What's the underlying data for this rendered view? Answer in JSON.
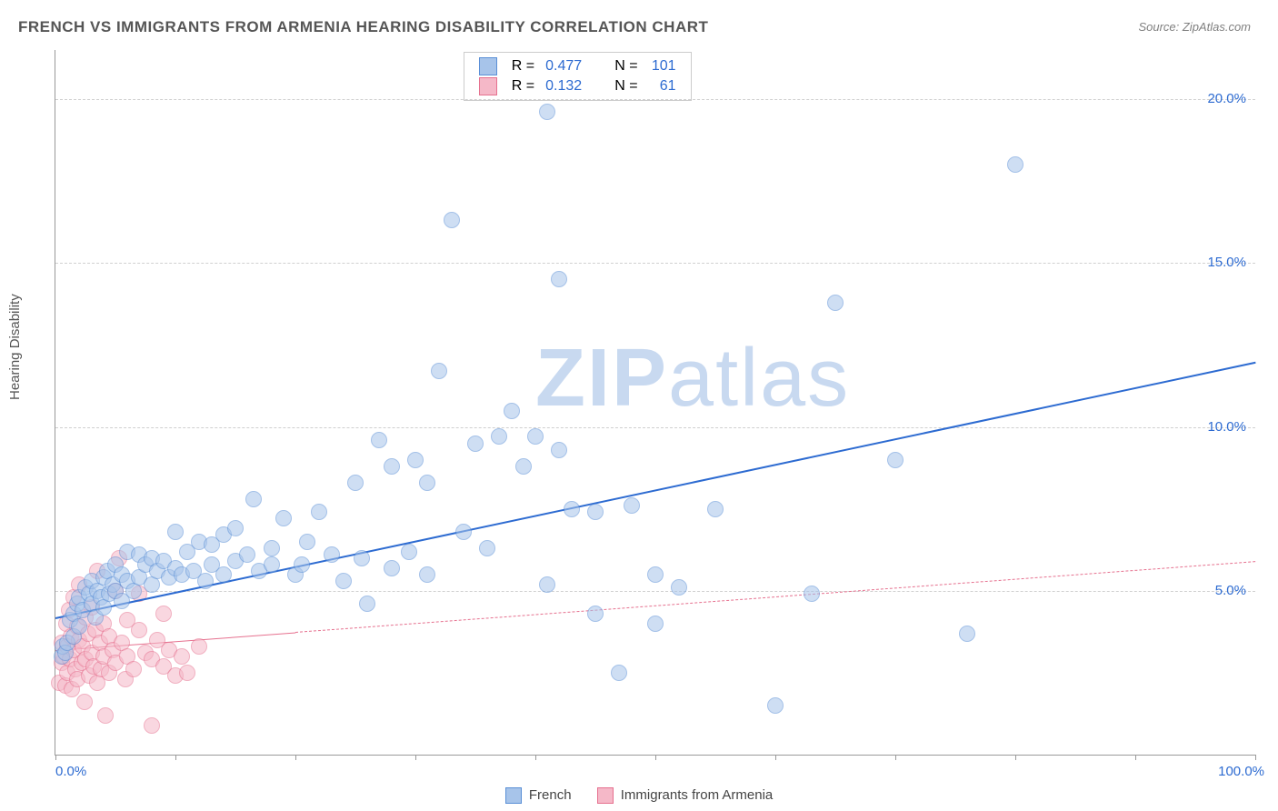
{
  "title": "FRENCH VS IMMIGRANTS FROM ARMENIA HEARING DISABILITY CORRELATION CHART",
  "source_label": "Source: ZipAtlas.com",
  "y_axis_label": "Hearing Disability",
  "watermark": {
    "text_bold": "ZIP",
    "text_light": "atlas",
    "color": "#c8d9f0"
  },
  "chart": {
    "type": "scatter",
    "background_color": "#ffffff",
    "grid_color": "#d0d0d0",
    "axis_color": "#999999",
    "xlim": [
      0,
      100
    ],
    "ylim": [
      0,
      21.5
    ],
    "x_ticks": [
      0,
      10,
      20,
      30,
      40,
      50,
      60,
      70,
      80,
      90,
      100
    ],
    "x_tick_labels": {
      "0": "0.0%",
      "100": "100.0%"
    },
    "x_label_color": "#2d6bd1",
    "y_ticks": [
      5,
      10,
      15,
      20
    ],
    "y_tick_labels": {
      "5": "5.0%",
      "10": "10.0%",
      "15": "15.0%",
      "20": "20.0%"
    },
    "y_label_color": "#2d6bd1",
    "marker_radius": 9,
    "marker_stroke_width": 1.2
  },
  "series": [
    {
      "id": "french",
      "label": "French",
      "color_fill": "#a7c4ea",
      "color_stroke": "#5a8fd6",
      "fill_opacity": 0.55,
      "R": "0.477",
      "N": "101",
      "trend": {
        "x1": 0,
        "y1": 4.2,
        "x2": 100,
        "y2": 12.0,
        "color": "#2d6bd1",
        "width": 2.5,
        "dash": "solid",
        "solid_until_x": 100
      },
      "points": [
        [
          0.5,
          3.0
        ],
        [
          0.6,
          3.3
        ],
        [
          0.8,
          3.1
        ],
        [
          1.0,
          3.4
        ],
        [
          1.2,
          4.1
        ],
        [
          1.5,
          3.6
        ],
        [
          1.5,
          4.3
        ],
        [
          1.8,
          4.6
        ],
        [
          2.0,
          3.9
        ],
        [
          2.0,
          4.8
        ],
        [
          2.3,
          4.4
        ],
        [
          2.5,
          5.1
        ],
        [
          2.8,
          4.9
        ],
        [
          3.0,
          4.6
        ],
        [
          3.0,
          5.3
        ],
        [
          3.3,
          4.2
        ],
        [
          3.5,
          5.0
        ],
        [
          3.8,
          4.8
        ],
        [
          4.0,
          5.4
        ],
        [
          4.0,
          4.5
        ],
        [
          4.3,
          5.6
        ],
        [
          4.5,
          4.9
        ],
        [
          4.8,
          5.2
        ],
        [
          5.0,
          5.0
        ],
        [
          5.0,
          5.8
        ],
        [
          5.5,
          4.7
        ],
        [
          5.5,
          5.5
        ],
        [
          6.0,
          5.3
        ],
        [
          6.0,
          6.2
        ],
        [
          6.5,
          5.0
        ],
        [
          7.0,
          5.4
        ],
        [
          7.0,
          6.1
        ],
        [
          7.5,
          5.8
        ],
        [
          8.0,
          5.2
        ],
        [
          8.0,
          6.0
        ],
        [
          8.5,
          5.6
        ],
        [
          9.0,
          5.9
        ],
        [
          9.5,
          5.4
        ],
        [
          10.0,
          5.7
        ],
        [
          10.0,
          6.8
        ],
        [
          10.5,
          5.5
        ],
        [
          11.0,
          6.2
        ],
        [
          11.5,
          5.6
        ],
        [
          12.0,
          6.5
        ],
        [
          12.5,
          5.3
        ],
        [
          13.0,
          6.4
        ],
        [
          13.0,
          5.8
        ],
        [
          14.0,
          6.7
        ],
        [
          14.0,
          5.5
        ],
        [
          15.0,
          5.9
        ],
        [
          15.0,
          6.9
        ],
        [
          16.0,
          6.1
        ],
        [
          16.5,
          7.8
        ],
        [
          17.0,
          5.6
        ],
        [
          18.0,
          6.3
        ],
        [
          18.0,
          5.8
        ],
        [
          19.0,
          7.2
        ],
        [
          20.0,
          5.5
        ],
        [
          20.5,
          5.8
        ],
        [
          21.0,
          6.5
        ],
        [
          22.0,
          7.4
        ],
        [
          23.0,
          6.1
        ],
        [
          24.0,
          5.3
        ],
        [
          25.0,
          8.3
        ],
        [
          25.5,
          6.0
        ],
        [
          26.0,
          4.6
        ],
        [
          27.0,
          9.6
        ],
        [
          28.0,
          5.7
        ],
        [
          28.0,
          8.8
        ],
        [
          29.5,
          6.2
        ],
        [
          30.0,
          9.0
        ],
        [
          31.0,
          8.3
        ],
        [
          31.0,
          5.5
        ],
        [
          32.0,
          11.7
        ],
        [
          33.0,
          16.3
        ],
        [
          34.0,
          6.8
        ],
        [
          35.0,
          9.5
        ],
        [
          36.0,
          6.3
        ],
        [
          37.0,
          9.7
        ],
        [
          38.0,
          10.5
        ],
        [
          39.0,
          8.8
        ],
        [
          40.0,
          9.7
        ],
        [
          41.0,
          5.2
        ],
        [
          41.0,
          19.6
        ],
        [
          42.0,
          9.3
        ],
        [
          42.0,
          14.5
        ],
        [
          43.0,
          7.5
        ],
        [
          45.0,
          7.4
        ],
        [
          45.0,
          4.3
        ],
        [
          47.0,
          2.5
        ],
        [
          48.0,
          7.6
        ],
        [
          50.0,
          4.0
        ],
        [
          50.0,
          5.5
        ],
        [
          52.0,
          5.1
        ],
        [
          55.0,
          7.5
        ],
        [
          60.0,
          1.5
        ],
        [
          63.0,
          4.9
        ],
        [
          65.0,
          13.8
        ],
        [
          70.0,
          9.0
        ],
        [
          76.0,
          3.7
        ],
        [
          80.0,
          18.0
        ]
      ]
    },
    {
      "id": "armenia",
      "label": "Immigrants from Armenia",
      "color_fill": "#f5b8c8",
      "color_stroke": "#e6718f",
      "fill_opacity": 0.55,
      "R": "0.132",
      "N": "61",
      "trend": {
        "x1": 0,
        "y1": 3.2,
        "x2": 100,
        "y2": 5.9,
        "color": "#e6718f",
        "width": 1.5,
        "dash": "dashed",
        "solid_until_x": 20
      },
      "points": [
        [
          0.3,
          2.2
        ],
        [
          0.5,
          3.4
        ],
        [
          0.5,
          2.8
        ],
        [
          0.7,
          3.0
        ],
        [
          0.8,
          2.1
        ],
        [
          0.9,
          4.0
        ],
        [
          1.0,
          3.3
        ],
        [
          1.0,
          2.5
        ],
        [
          1.1,
          4.4
        ],
        [
          1.2,
          2.9
        ],
        [
          1.3,
          3.6
        ],
        [
          1.4,
          2.0
        ],
        [
          1.5,
          3.2
        ],
        [
          1.5,
          4.8
        ],
        [
          1.7,
          2.6
        ],
        [
          1.8,
          3.9
        ],
        [
          1.8,
          2.3
        ],
        [
          2.0,
          3.5
        ],
        [
          2.0,
          5.2
        ],
        [
          2.2,
          2.8
        ],
        [
          2.3,
          3.3
        ],
        [
          2.4,
          1.6
        ],
        [
          2.5,
          4.2
        ],
        [
          2.5,
          2.9
        ],
        [
          2.7,
          3.7
        ],
        [
          2.8,
          2.4
        ],
        [
          3.0,
          3.1
        ],
        [
          3.0,
          4.5
        ],
        [
          3.2,
          2.7
        ],
        [
          3.3,
          3.8
        ],
        [
          3.5,
          2.2
        ],
        [
          3.5,
          5.6
        ],
        [
          3.7,
          3.4
        ],
        [
          3.8,
          2.6
        ],
        [
          4.0,
          4.0
        ],
        [
          4.0,
          3.0
        ],
        [
          4.2,
          1.2
        ],
        [
          4.5,
          3.6
        ],
        [
          4.5,
          2.5
        ],
        [
          4.8,
          3.2
        ],
        [
          5.0,
          5.0
        ],
        [
          5.0,
          2.8
        ],
        [
          5.3,
          6.0
        ],
        [
          5.5,
          3.4
        ],
        [
          5.8,
          2.3
        ],
        [
          6.0,
          4.1
        ],
        [
          6.0,
          3.0
        ],
        [
          6.5,
          2.6
        ],
        [
          7.0,
          3.8
        ],
        [
          7.0,
          4.9
        ],
        [
          7.5,
          3.1
        ],
        [
          8.0,
          2.9
        ],
        [
          8.0,
          0.9
        ],
        [
          8.5,
          3.5
        ],
        [
          9.0,
          4.3
        ],
        [
          9.0,
          2.7
        ],
        [
          9.5,
          3.2
        ],
        [
          10.0,
          2.4
        ],
        [
          10.5,
          3.0
        ],
        [
          11.0,
          2.5
        ],
        [
          12.0,
          3.3
        ]
      ]
    }
  ],
  "legend_top": {
    "rows": [
      {
        "swatch_fill": "#a7c4ea",
        "swatch_stroke": "#5a8fd6",
        "r_label": "R =",
        "r_value": "0.477",
        "n_label": "N =",
        "n_value": "101",
        "value_color": "#2d6bd1"
      },
      {
        "swatch_fill": "#f5b8c8",
        "swatch_stroke": "#e6718f",
        "r_label": "R =",
        "r_value": "0.132",
        "n_label": "N =",
        "n_value": "61",
        "value_color": "#2d6bd1"
      }
    ]
  },
  "legend_bottom": {
    "items": [
      {
        "swatch_fill": "#a7c4ea",
        "swatch_stroke": "#5a8fd6",
        "label": "French"
      },
      {
        "swatch_fill": "#f5b8c8",
        "swatch_stroke": "#e6718f",
        "label": "Immigrants from Armenia"
      }
    ]
  }
}
